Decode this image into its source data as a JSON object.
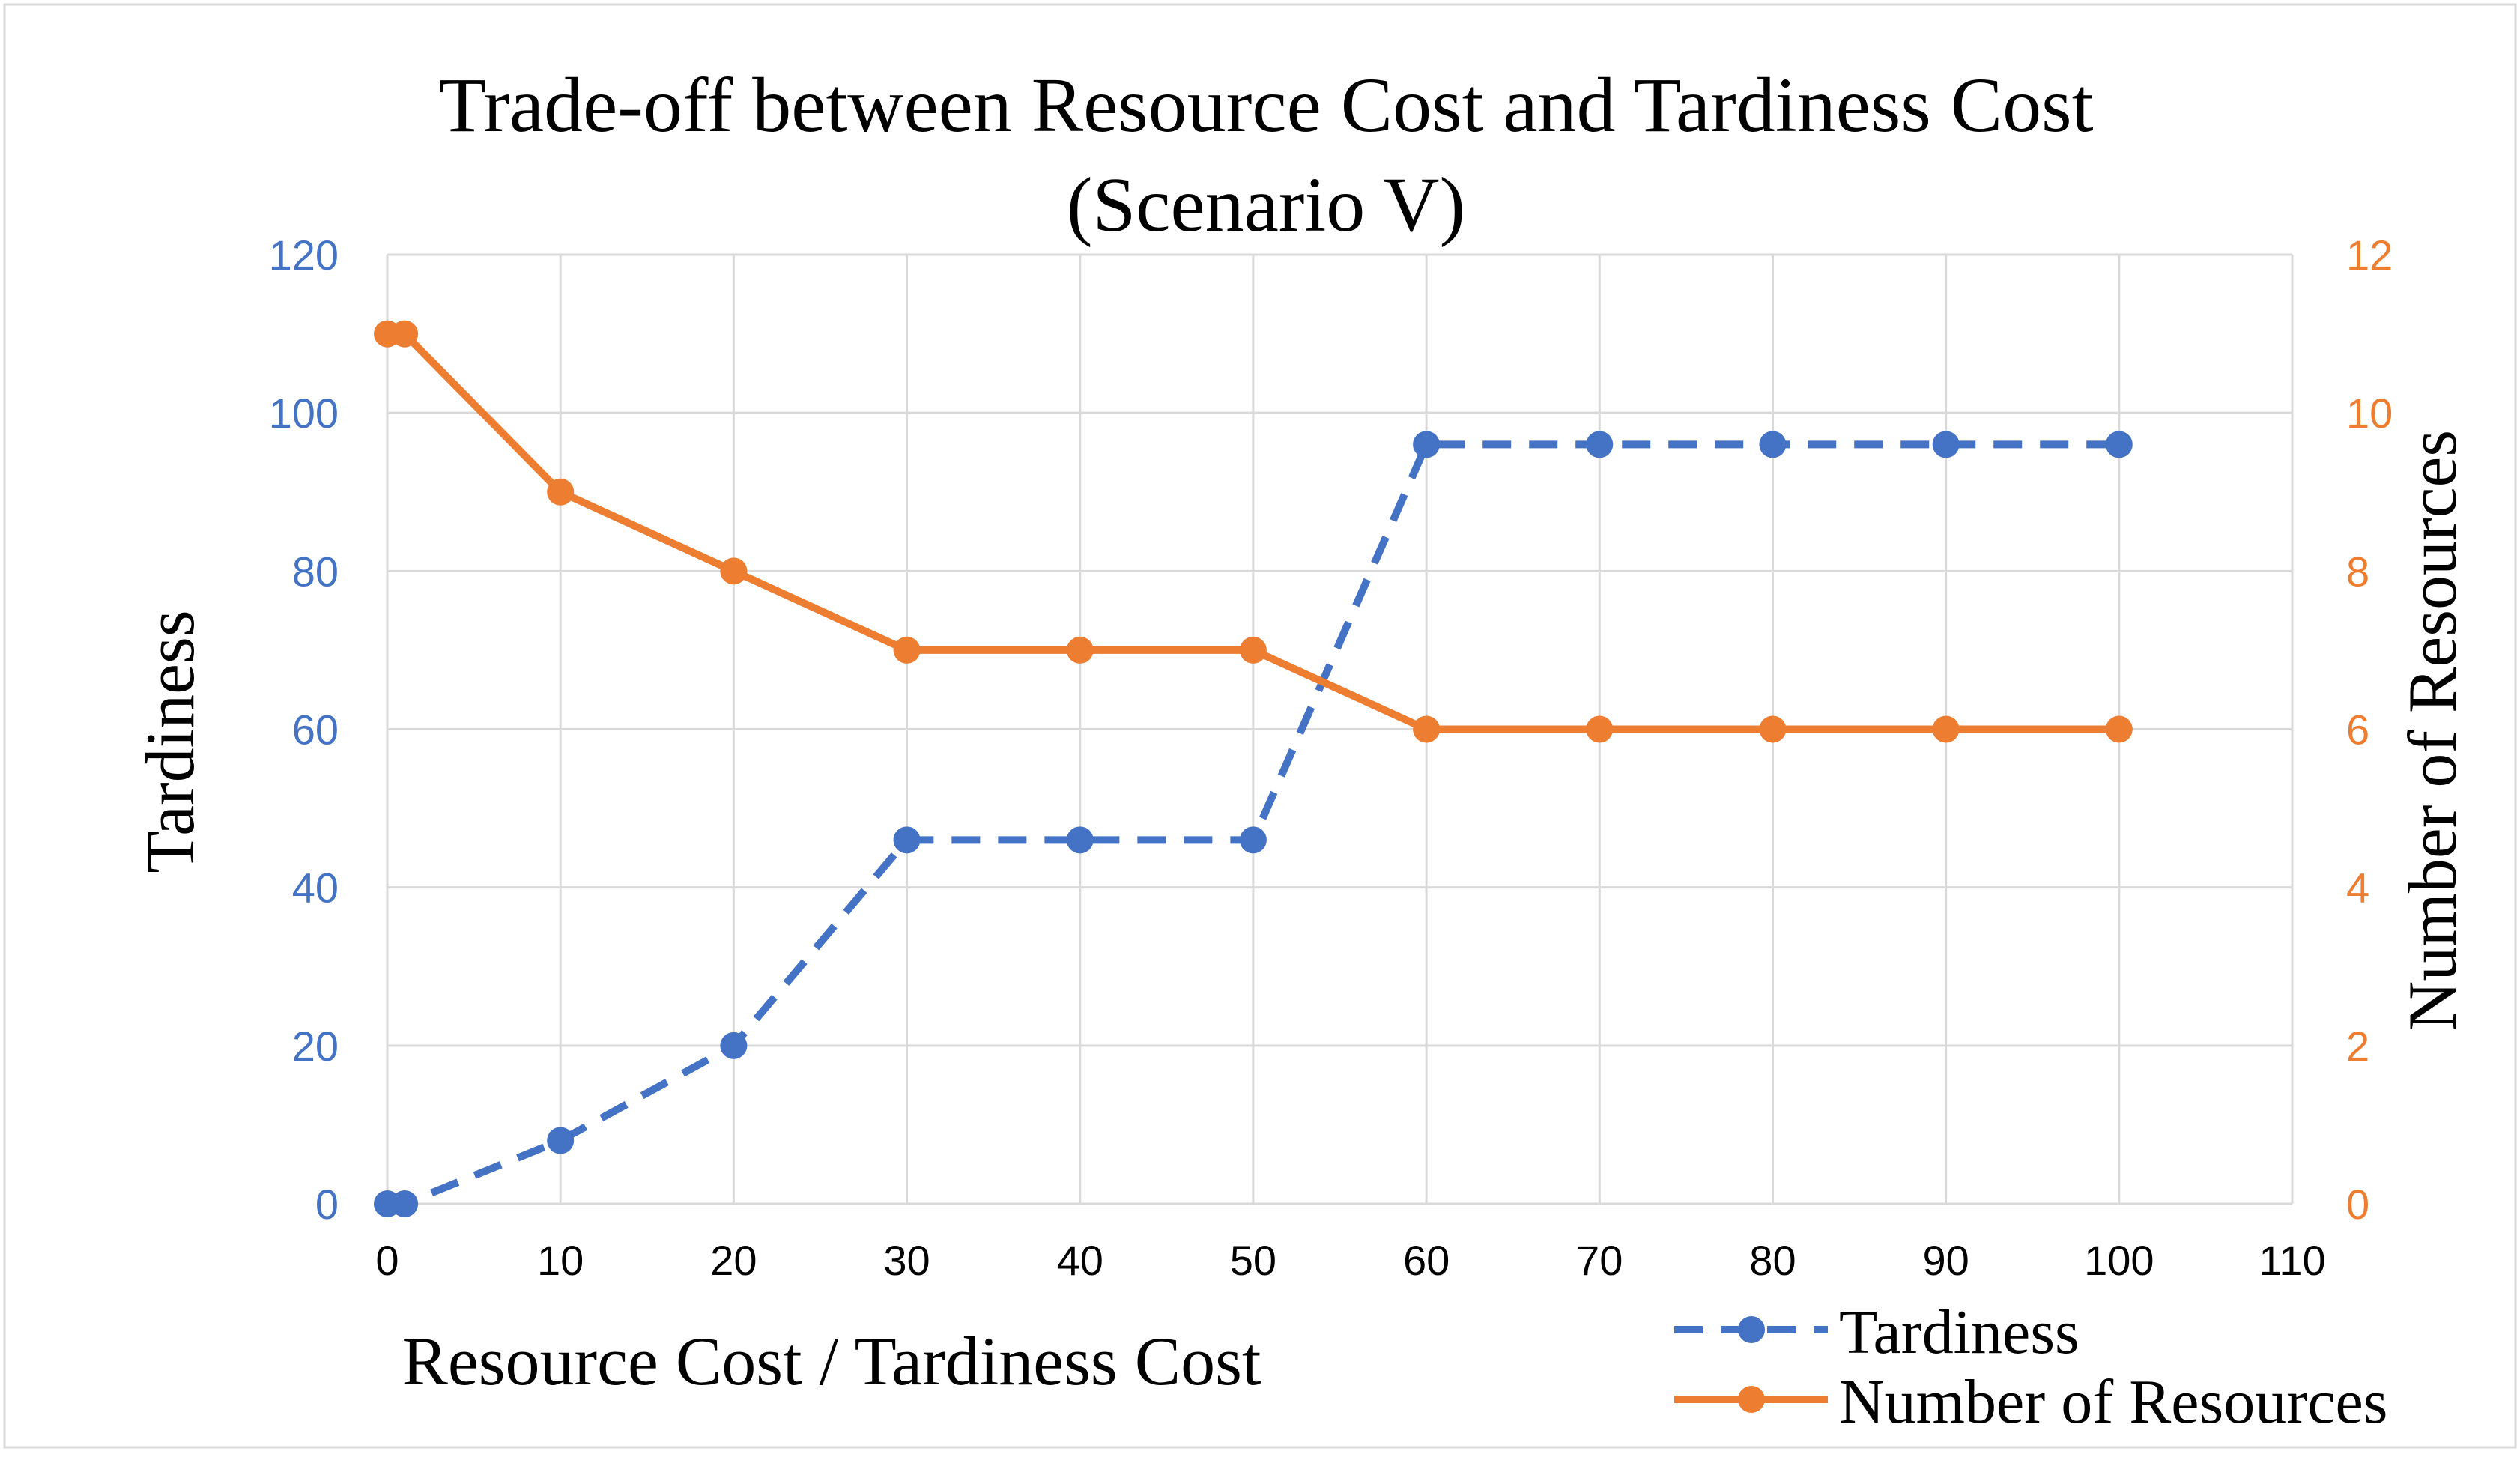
{
  "chart_data": {
    "type": "line",
    "title_lines": [
      "Trade-off between Resource Cost and Tardiness Cost",
      "(Scenario V)"
    ],
    "xlabel": "Resource Cost / Tardiness Cost",
    "ylabel": "Tardiness",
    "y2label": "Number of Resources",
    "xlim": [
      0,
      110
    ],
    "ylim": [
      0,
      120
    ],
    "y2lim": [
      0,
      12
    ],
    "x_ticks": [
      0,
      10,
      20,
      30,
      40,
      50,
      60,
      70,
      80,
      90,
      100,
      110
    ],
    "y_ticks": [
      0,
      20,
      40,
      60,
      80,
      100,
      120
    ],
    "y2_ticks": [
      0,
      2,
      4,
      6,
      8,
      10,
      12
    ],
    "grid": true,
    "legend_position": "bottom-right",
    "series": [
      {
        "name": "Tardiness",
        "axis": "left",
        "style": "dashed",
        "color": "#4472C4",
        "x": [
          0,
          1,
          10,
          20,
          30,
          40,
          50,
          60,
          70,
          80,
          90,
          100
        ],
        "values": [
          0,
          0,
          8,
          20,
          46,
          46,
          46,
          96,
          96,
          96,
          96,
          96
        ]
      },
      {
        "name": "Number of Resources",
        "axis": "right",
        "style": "solid",
        "color": "#ED7D31",
        "x": [
          0,
          1,
          10,
          20,
          30,
          40,
          50,
          60,
          70,
          80,
          90,
          100
        ],
        "values": [
          11,
          11,
          9,
          8,
          7,
          7,
          7,
          6,
          6,
          6,
          6,
          6
        ]
      }
    ],
    "colors": {
      "left_axis": "#4472C4",
      "right_axis": "#ED7D31",
      "grid": "#D9D9D9",
      "text": "#000000"
    }
  }
}
